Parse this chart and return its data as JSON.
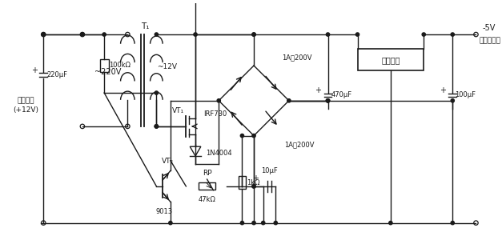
{
  "bg": "#ffffff",
  "lc": "#1a1a1a",
  "figsize": [
    6.27,
    3.1
  ],
  "dpi": 100,
  "labels": {
    "ac220": "~220V",
    "ac12": "~12V",
    "T1": "T₁",
    "bat1": "电池电压",
    "bat2": "(+12V)",
    "VT1": "VT₁",
    "IRF730": "IRF730",
    "IN4004": "1N4004",
    "diode1": "1A／200V",
    "diode2": "1A／200V",
    "C470": "470μF",
    "C100": "100μF",
    "C220": "220μF",
    "C10": "10μF",
    "R100k": "100kΩ",
    "R47k": "47kΩ",
    "R1k": "1kΩ",
    "RP": "RP",
    "VT2": "VT₂",
    "Q9013": "9013",
    "regulator": "稳压电源",
    "vout": "-5V",
    "load": "（接负载）"
  }
}
